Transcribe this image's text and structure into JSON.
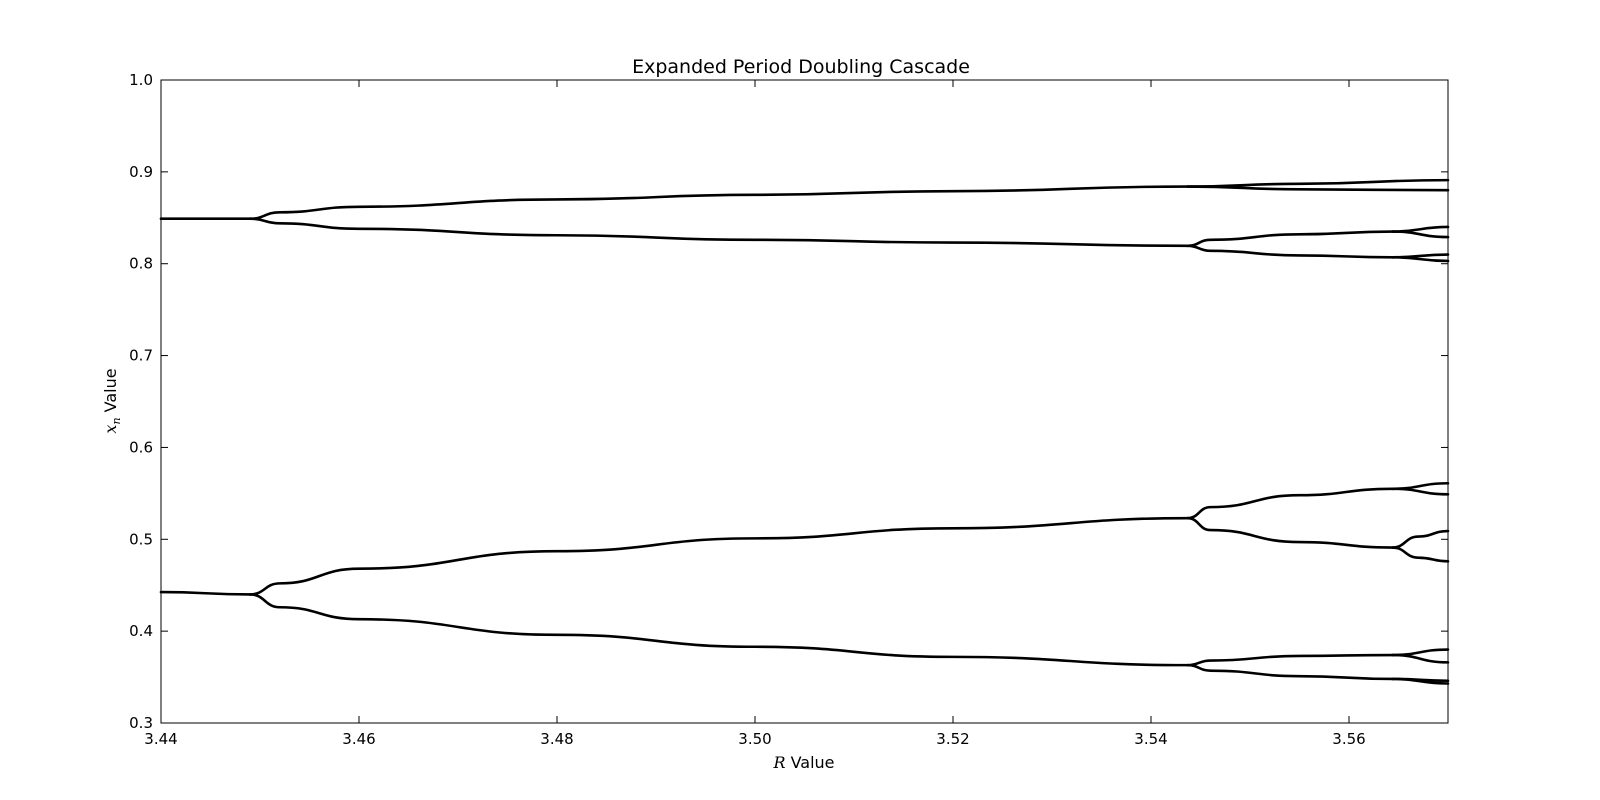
{
  "chart_data": {
    "type": "line",
    "title": "Expanded Period Doubling Cascade",
    "xlabel_symbol": "R",
    "xlabel_text": " Value",
    "ylabel_symbol": "x",
    "ylabel_subscript": "n",
    "ylabel_text": " Value",
    "xlim": [
      3.44,
      3.57
    ],
    "ylim": [
      0.3,
      1.0
    ],
    "xticks": [
      3.44,
      3.46,
      3.48,
      3.5,
      3.52,
      3.54,
      3.56
    ],
    "xtick_labels": [
      "3.44",
      "3.46",
      "3.48",
      "3.50",
      "3.52",
      "3.54",
      "3.56"
    ],
    "yticks": [
      0.3,
      0.4,
      0.5,
      0.6,
      0.7,
      0.8,
      0.9,
      1.0
    ],
    "ytick_labels": [
      "0.3",
      "0.4",
      "0.5",
      "0.6",
      "0.7",
      "0.8",
      "0.9",
      "1.0"
    ],
    "grid": false,
    "line_color": "#000000",
    "background": "#ffffff",
    "series": [
      {
        "x": [
          3.44,
          3.449
        ],
        "y": [
          0.849,
          0.849
        ]
      },
      {
        "x": [
          3.449,
          3.452,
          3.46,
          3.48,
          3.5,
          3.52,
          3.5437
        ],
        "y": [
          0.849,
          0.856,
          0.862,
          0.87,
          0.875,
          0.879,
          0.884
        ]
      },
      {
        "x": [
          3.5437,
          3.555,
          3.57
        ],
        "y": [
          0.884,
          0.887,
          0.891
        ]
      },
      {
        "x": [
          3.5437,
          3.555,
          3.57
        ],
        "y": [
          0.884,
          0.881,
          0.88
        ]
      },
      {
        "x": [
          3.449,
          3.452,
          3.46,
          3.48,
          3.5,
          3.52,
          3.5437
        ],
        "y": [
          0.849,
          0.844,
          0.838,
          0.831,
          0.826,
          0.823,
          0.8195
        ]
      },
      {
        "x": [
          3.5437,
          3.546,
          3.555,
          3.5644
        ],
        "y": [
          0.8195,
          0.826,
          0.832,
          0.835
        ]
      },
      {
        "x": [
          3.5644,
          3.57
        ],
        "y": [
          0.835,
          0.84
        ]
      },
      {
        "x": [
          3.5644,
          3.57
        ],
        "y": [
          0.835,
          0.829
        ]
      },
      {
        "x": [
          3.5437,
          3.546,
          3.555,
          3.5644
        ],
        "y": [
          0.8195,
          0.814,
          0.809,
          0.807
        ]
      },
      {
        "x": [
          3.5644,
          3.57
        ],
        "y": [
          0.807,
          0.81
        ]
      },
      {
        "x": [
          3.5644,
          3.57
        ],
        "y": [
          0.807,
          0.803
        ]
      },
      {
        "x": [
          3.44,
          3.449
        ],
        "y": [
          0.4425,
          0.44
        ]
      },
      {
        "x": [
          3.449,
          3.452,
          3.46,
          3.48,
          3.5,
          3.52,
          3.5437
        ],
        "y": [
          0.44,
          0.452,
          0.468,
          0.487,
          0.501,
          0.512,
          0.523
        ]
      },
      {
        "x": [
          3.5437,
          3.546,
          3.555,
          3.5644
        ],
        "y": [
          0.523,
          0.535,
          0.548,
          0.555
        ]
      },
      {
        "x": [
          3.5644,
          3.57
        ],
        "y": [
          0.555,
          0.561
        ]
      },
      {
        "x": [
          3.5644,
          3.57
        ],
        "y": [
          0.555,
          0.549
        ]
      },
      {
        "x": [
          3.5437,
          3.546,
          3.555,
          3.5644
        ],
        "y": [
          0.523,
          0.51,
          0.497,
          0.491
        ]
      },
      {
        "x": [
          3.5644,
          3.567,
          3.57
        ],
        "y": [
          0.491,
          0.503,
          0.509
        ]
      },
      {
        "x": [
          3.5644,
          3.567,
          3.57
        ],
        "y": [
          0.491,
          0.48,
          0.476
        ]
      },
      {
        "x": [
          3.449,
          3.452,
          3.46,
          3.48,
          3.5,
          3.52,
          3.5437
        ],
        "y": [
          0.44,
          0.426,
          0.413,
          0.396,
          0.383,
          0.372,
          0.363
        ]
      },
      {
        "x": [
          3.5437,
          3.546,
          3.555,
          3.5644
        ],
        "y": [
          0.363,
          0.368,
          0.373,
          0.374
        ]
      },
      {
        "x": [
          3.5644,
          3.57
        ],
        "y": [
          0.374,
          0.38
        ]
      },
      {
        "x": [
          3.5644,
          3.57
        ],
        "y": [
          0.374,
          0.366
        ]
      },
      {
        "x": [
          3.5437,
          3.546,
          3.555,
          3.5644
        ],
        "y": [
          0.363,
          0.357,
          0.351,
          0.348
        ]
      },
      {
        "x": [
          3.5644,
          3.57
        ],
        "y": [
          0.348,
          0.346
        ]
      },
      {
        "x": [
          3.5644,
          3.57
        ],
        "y": [
          0.348,
          0.343
        ]
      }
    ]
  }
}
